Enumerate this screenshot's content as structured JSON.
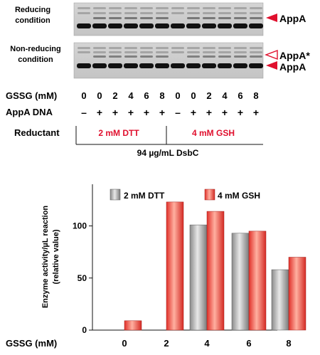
{
  "gel": {
    "reducing_label_line1": "Reducing",
    "reducing_label_line2": "condition",
    "nonreducing_label_line1": "Non-reducing",
    "nonreducing_label_line2": "condition",
    "band_label_top": "AppA",
    "band_label_appa_star": "AppA*",
    "band_label_bottom": "AppA",
    "arrow_color": "#e0102e"
  },
  "table": {
    "gssg_label": "GSSG (mM)",
    "gssg_values": [
      "0",
      "0",
      "2",
      "4",
      "6",
      "8",
      "0",
      "0",
      "2",
      "4",
      "6",
      "8"
    ],
    "dna_label": "AppA DNA",
    "dna_values": [
      "–",
      "+",
      "+",
      "+",
      "+",
      "+",
      "–",
      "+",
      "+",
      "+",
      "+",
      "+"
    ],
    "reductant_label": "Reductant",
    "reductant_1": "2 mM DTT",
    "reductant_2": "4 mM GSH",
    "reductant_color": "#e0102e",
    "dsbc_label": "94 µg/mL DsbC"
  },
  "chart_data": {
    "type": "bar",
    "categories": [
      "0",
      "2",
      "4",
      "6",
      "8"
    ],
    "series": [
      {
        "name": "2 mM DTT",
        "values": [
          0,
          0,
          101,
          93,
          58
        ],
        "color": "gray-gradient"
      },
      {
        "name": "4 mM GSH",
        "values": [
          9,
          123,
          114,
          95,
          70
        ],
        "color": "red-gradient"
      }
    ],
    "xlabel": "GSSG (mM)",
    "ylabel_line1": "Enzyme activity/µL reaction",
    "ylabel_line2": "(relative value)",
    "yticks": [
      "0",
      "50",
      "100"
    ],
    "ylim": [
      0,
      140
    ],
    "legend_position": "top"
  }
}
